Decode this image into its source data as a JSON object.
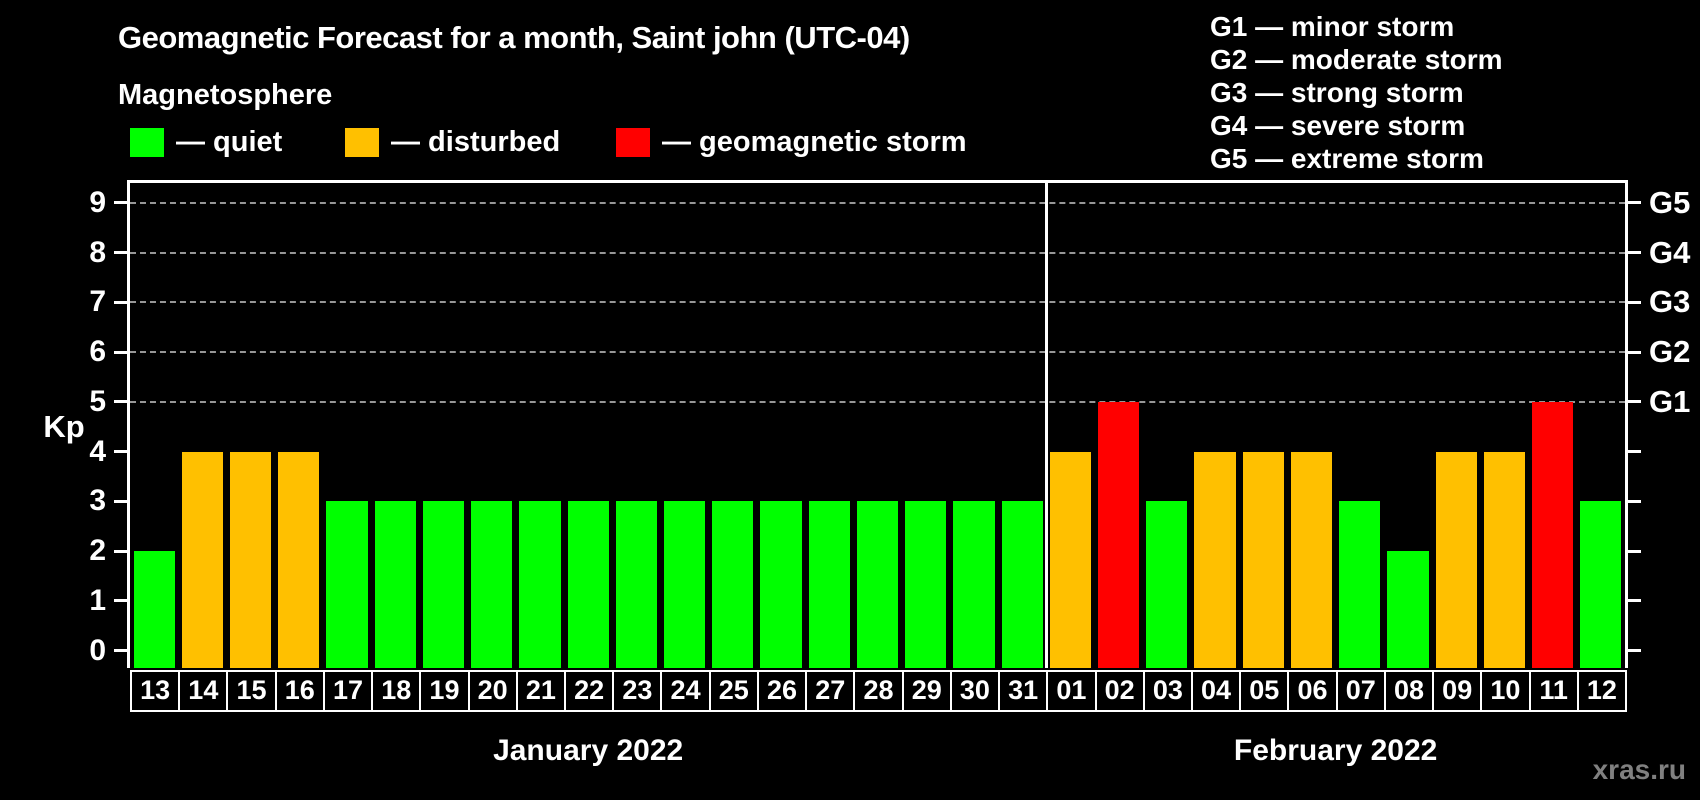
{
  "title": "Geomagnetic Forecast for a month, Saint john (UTC-04)",
  "legend": {
    "title": "Magnetosphere",
    "items": [
      {
        "name": "quiet",
        "label": "— quiet",
        "color": "#00ff00"
      },
      {
        "name": "disturbed",
        "label": "— disturbed",
        "color": "#ffc000"
      },
      {
        "name": "storm",
        "label": "— geomagnetic storm",
        "color": "#ff0000"
      }
    ]
  },
  "g_scale_legend": [
    "G1 — minor storm",
    "G2 — moderate storm",
    "G3 — strong storm",
    "G4 — severe storm",
    "G5 — extreme storm"
  ],
  "watermark": "xras.ru",
  "colors": {
    "quiet": "#00ff00",
    "disturbed": "#ffc000",
    "storm": "#ff0000",
    "axis": "#ffffff",
    "grid": "#979797",
    "background": "#000000",
    "watermark": "#808080"
  },
  "chart_data": {
    "type": "bar",
    "ylabel": "Kp",
    "ylim": [
      0,
      9
    ],
    "y_ticks": [
      0,
      1,
      2,
      3,
      4,
      5,
      6,
      7,
      8,
      9
    ],
    "gridlines_at_kp": [
      5,
      6,
      7,
      8,
      9
    ],
    "right_axis": [
      {
        "kp": 5,
        "label": "G1"
      },
      {
        "kp": 6,
        "label": "G2"
      },
      {
        "kp": 7,
        "label": "G3"
      },
      {
        "kp": 8,
        "label": "G4"
      },
      {
        "kp": 9,
        "label": "G5"
      }
    ],
    "color_thresholds": {
      "quiet_max": 3,
      "disturbed": 4,
      "storm_min": 5
    },
    "legend_position": "top",
    "grid": "dashed horizontal at storm levels only",
    "months": [
      {
        "label": "January 2022",
        "days": [
          "13",
          "14",
          "15",
          "16",
          "17",
          "18",
          "19",
          "20",
          "21",
          "22",
          "23",
          "24",
          "25",
          "26",
          "27",
          "28",
          "29",
          "30",
          "31"
        ],
        "kp_values": [
          2,
          4,
          4,
          4,
          3,
          3,
          3,
          3,
          3,
          3,
          3,
          3,
          3,
          3,
          3,
          3,
          3,
          3,
          3
        ]
      },
      {
        "label": "February 2022",
        "days": [
          "01",
          "02",
          "03",
          "04",
          "05",
          "06",
          "07",
          "08",
          "09",
          "10",
          "11",
          "12"
        ],
        "kp_values": [
          4,
          5,
          3,
          4,
          4,
          4,
          3,
          2,
          4,
          4,
          5,
          3
        ]
      }
    ]
  }
}
